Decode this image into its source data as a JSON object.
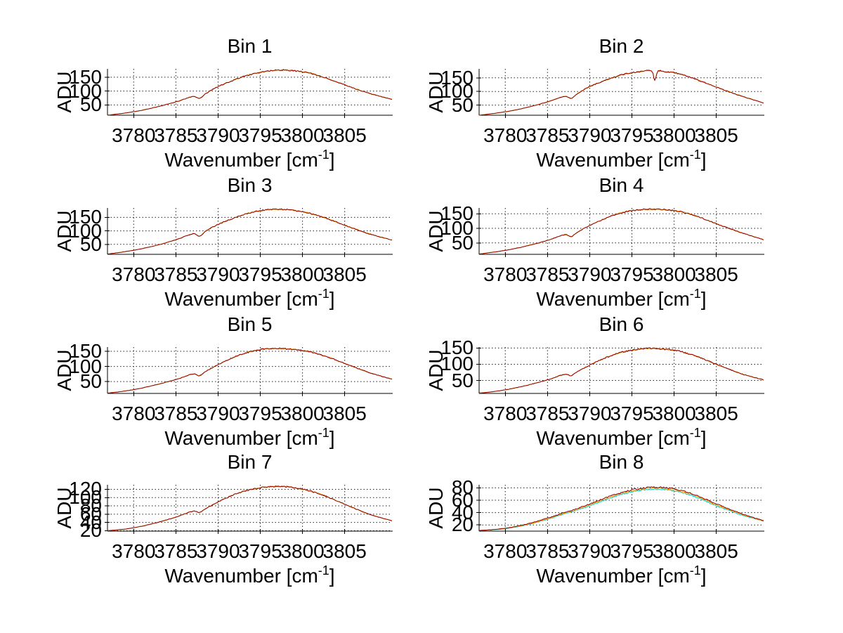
{
  "labels": {
    "ylabel": "ADU",
    "xlabel_main": "Wavenumber [cm",
    "xlabel_sup": "-1",
    "xlabel_close": "]"
  },
  "style": {
    "background": "#ffffff",
    "axis_color": "#000000",
    "grid_color": "#222222",
    "primary_trace_color": "#8B0000",
    "secondary_trace_color": "#FF9900",
    "cyan_trace_color": "#00CCCC",
    "yellow_trace_color": "#FFA500"
  },
  "chart_data": [
    {
      "type": "line",
      "title": "Bin 1",
      "xlabel": "Wavenumber [cm^-1]",
      "ylabel": "ADU",
      "x_range": [
        3776.9,
        3810.6
      ],
      "y_range": [
        13,
        180
      ],
      "grid": true,
      "x_ticks": [
        3780,
        3785,
        3790,
        3795,
        3800,
        3805
      ],
      "y_ticks": [
        50,
        100,
        150
      ],
      "noise": 2.4,
      "points": [
        [
          3776.9,
          13
        ],
        [
          3779,
          21
        ],
        [
          3781,
          31
        ],
        [
          3783,
          45
        ],
        [
          3785,
          61
        ],
        [
          3787,
          80
        ],
        [
          3787.8,
          74
        ],
        [
          3788.6,
          92
        ],
        [
          3790,
          116
        ],
        [
          3791.5,
          135
        ],
        [
          3793,
          152
        ],
        [
          3794.5,
          164
        ],
        [
          3796,
          172
        ],
        [
          3797.5,
          176
        ],
        [
          3799,
          173
        ],
        [
          3800.5,
          167
        ],
        [
          3802,
          155
        ],
        [
          3803.5,
          139
        ],
        [
          3805,
          122
        ],
        [
          3806.5,
          106
        ],
        [
          3808,
          91
        ],
        [
          3810.6,
          70
        ]
      ],
      "series": [
        {
          "name": "secondary-trace",
          "color": "#FF9900",
          "points_key": "points",
          "seed": 101
        },
        {
          "name": "primary-trace",
          "color": "#8B0000",
          "points_key": "points",
          "seed": 14
        }
      ]
    },
    {
      "type": "line",
      "title": "Bin 2",
      "xlabel": "Wavenumber [cm^-1]",
      "ylabel": "ADU",
      "x_range": [
        3776.9,
        3810.6
      ],
      "y_range": [
        13,
        183
      ],
      "grid": true,
      "x_ticks": [
        3780,
        3785,
        3790,
        3795,
        3800,
        3805
      ],
      "y_ticks": [
        50,
        100,
        150
      ],
      "noise": 2.4,
      "points": [
        [
          3776.9,
          13
        ],
        [
          3779,
          21
        ],
        [
          3781,
          31
        ],
        [
          3783,
          45
        ],
        [
          3785,
          62
        ],
        [
          3787,
          82
        ],
        [
          3787.8,
          75
        ],
        [
          3788.6,
          93
        ],
        [
          3790,
          118
        ],
        [
          3791.5,
          137
        ],
        [
          3793,
          154
        ],
        [
          3794.5,
          166
        ],
        [
          3796,
          173
        ],
        [
          3797.3,
          176
        ],
        [
          3797.7,
          141
        ],
        [
          3798.1,
          174
        ],
        [
          3799,
          172
        ],
        [
          3800.5,
          166
        ],
        [
          3802,
          152
        ],
        [
          3803.5,
          134
        ],
        [
          3805,
          116
        ],
        [
          3806.5,
          99
        ],
        [
          3808,
          83
        ],
        [
          3810.6,
          58
        ]
      ],
      "series": [
        {
          "name": "secondary-trace",
          "color": "#FF9900",
          "points_key": "points",
          "seed": 102
        },
        {
          "name": "primary-trace",
          "color": "#8B0000",
          "points_key": "points",
          "seed": 27
        }
      ]
    },
    {
      "type": "line",
      "title": "Bin 3",
      "xlabel": "Wavenumber [cm^-1]",
      "ylabel": "ADU",
      "x_range": [
        3776.9,
        3810.6
      ],
      "y_range": [
        13,
        185
      ],
      "grid": true,
      "x_ticks": [
        3780,
        3785,
        3790,
        3795,
        3800,
        3805
      ],
      "y_ticks": [
        50,
        100,
        150
      ],
      "noise": 2.4,
      "points": [
        [
          3776.9,
          14
        ],
        [
          3779,
          23
        ],
        [
          3781,
          34
        ],
        [
          3783,
          49
        ],
        [
          3785,
          67
        ],
        [
          3787,
          89
        ],
        [
          3787.8,
          80
        ],
        [
          3788.6,
          100
        ],
        [
          3790,
          124
        ],
        [
          3791.5,
          143
        ],
        [
          3793,
          160
        ],
        [
          3794.5,
          172
        ],
        [
          3796,
          179
        ],
        [
          3797.5,
          180
        ],
        [
          3799,
          176
        ],
        [
          3800.5,
          168
        ],
        [
          3802,
          155
        ],
        [
          3803.5,
          139
        ],
        [
          3805,
          121
        ],
        [
          3806.5,
          104
        ],
        [
          3808,
          88
        ],
        [
          3810.6,
          66
        ]
      ],
      "series": [
        {
          "name": "secondary-trace",
          "color": "#FF9900",
          "points_key": "points",
          "seed": 103
        },
        {
          "name": "primary-trace",
          "color": "#8B0000",
          "points_key": "points",
          "seed": 40
        }
      ]
    },
    {
      "type": "line",
      "title": "Bin 4",
      "xlabel": "Wavenumber [cm^-1]",
      "ylabel": "ADU",
      "x_range": [
        3776.9,
        3810.6
      ],
      "y_range": [
        11,
        170
      ],
      "grid": true,
      "x_ticks": [
        3780,
        3785,
        3790,
        3795,
        3800,
        3805
      ],
      "y_ticks": [
        50,
        100,
        150
      ],
      "noise": 2.2,
      "points": [
        [
          3776.9,
          12
        ],
        [
          3779,
          20
        ],
        [
          3781,
          30
        ],
        [
          3783,
          43
        ],
        [
          3785,
          59
        ],
        [
          3787,
          78
        ],
        [
          3787.8,
          72
        ],
        [
          3788.6,
          88
        ],
        [
          3790,
          110
        ],
        [
          3791.5,
          130
        ],
        [
          3793,
          147
        ],
        [
          3794.5,
          158
        ],
        [
          3796,
          164
        ],
        [
          3797.5,
          166
        ],
        [
          3799,
          164
        ],
        [
          3800.5,
          159
        ],
        [
          3802,
          148
        ],
        [
          3803.5,
          133
        ],
        [
          3805,
          116
        ],
        [
          3806.5,
          100
        ],
        [
          3808,
          85
        ],
        [
          3810.6,
          61
        ]
      ],
      "series": [
        {
          "name": "secondary-trace",
          "color": "#FF9900",
          "points_key": "points",
          "seed": 104
        },
        {
          "name": "primary-trace",
          "color": "#8B0000",
          "points_key": "points",
          "seed": 53
        }
      ]
    },
    {
      "type": "line",
      "title": "Bin 5",
      "xlabel": "Wavenumber [cm^-1]",
      "ylabel": "ADU",
      "x_range": [
        3776.9,
        3810.6
      ],
      "y_range": [
        11,
        164
      ],
      "grid": true,
      "x_ticks": [
        3780,
        3785,
        3790,
        3795,
        3800,
        3805
      ],
      "y_ticks": [
        50,
        100,
        150
      ],
      "noise": 2.2,
      "points": [
        [
          3776.9,
          12
        ],
        [
          3779,
          19
        ],
        [
          3781,
          29
        ],
        [
          3783,
          42
        ],
        [
          3785,
          57
        ],
        [
          3787,
          75
        ],
        [
          3787.8,
          70
        ],
        [
          3788.6,
          85
        ],
        [
          3790,
          106
        ],
        [
          3791.5,
          126
        ],
        [
          3793,
          142
        ],
        [
          3794.5,
          153
        ],
        [
          3796,
          159
        ],
        [
          3797.5,
          159
        ],
        [
          3799,
          156
        ],
        [
          3800.5,
          151
        ],
        [
          3802,
          140
        ],
        [
          3803.5,
          126
        ],
        [
          3805,
          110
        ],
        [
          3806.5,
          94
        ],
        [
          3808,
          79
        ],
        [
          3810.6,
          58
        ]
      ],
      "series": [
        {
          "name": "secondary-trace",
          "color": "#FF9900",
          "points_key": "points",
          "seed": 105
        },
        {
          "name": "primary-trace",
          "color": "#8B0000",
          "points_key": "points",
          "seed": 66
        }
      ]
    },
    {
      "type": "line",
      "title": "Bin 6",
      "xlabel": "Wavenumber [cm^-1]",
      "ylabel": "ADU",
      "x_range": [
        3776.9,
        3810.6
      ],
      "y_range": [
        10,
        153
      ],
      "grid": true,
      "x_ticks": [
        3780,
        3785,
        3790,
        3795,
        3800,
        3805
      ],
      "y_ticks": [
        50,
        100,
        150
      ],
      "noise": 2.2,
      "points": [
        [
          3776.9,
          11
        ],
        [
          3779,
          17
        ],
        [
          3781,
          26
        ],
        [
          3783,
          38
        ],
        [
          3785,
          52
        ],
        [
          3787,
          69
        ],
        [
          3787.8,
          65
        ],
        [
          3788.6,
          78
        ],
        [
          3790,
          97
        ],
        [
          3791.5,
          116
        ],
        [
          3793,
          131
        ],
        [
          3794.5,
          141
        ],
        [
          3796,
          147
        ],
        [
          3797.5,
          149
        ],
        [
          3799,
          146
        ],
        [
          3800.5,
          141
        ],
        [
          3802,
          130
        ],
        [
          3803.5,
          116
        ],
        [
          3805,
          100
        ],
        [
          3806.5,
          85
        ],
        [
          3808,
          70
        ],
        [
          3810.6,
          52
        ]
      ],
      "series": [
        {
          "name": "secondary-trace",
          "color": "#FF9900",
          "points_key": "points",
          "seed": 106
        },
        {
          "name": "primary-trace",
          "color": "#8B0000",
          "points_key": "points",
          "seed": 79
        }
      ]
    },
    {
      "type": "line",
      "title": "Bin 7",
      "xlabel": "Wavenumber [cm^-1]",
      "ylabel": "ADU",
      "x_range": [
        3776.9,
        3810.6
      ],
      "y_range": [
        19,
        131
      ],
      "grid": true,
      "x_ticks": [
        3780,
        3785,
        3790,
        3795,
        3800,
        3805
      ],
      "y_ticks": [
        20,
        40,
        60,
        80,
        100,
        120
      ],
      "noise": 1.6,
      "points": [
        [
          3776.9,
          20
        ],
        [
          3779,
          24
        ],
        [
          3781,
          31
        ],
        [
          3783,
          41
        ],
        [
          3785,
          53
        ],
        [
          3787,
          67
        ],
        [
          3787.8,
          64
        ],
        [
          3788.6,
          74
        ],
        [
          3790,
          89
        ],
        [
          3791.5,
          104
        ],
        [
          3793,
          115
        ],
        [
          3794.5,
          122
        ],
        [
          3796,
          126
        ],
        [
          3797.5,
          127
        ],
        [
          3799,
          124
        ],
        [
          3800.5,
          118
        ],
        [
          3802,
          109
        ],
        [
          3803.5,
          97
        ],
        [
          3805,
          84
        ],
        [
          3806.5,
          71
        ],
        [
          3808,
          59
        ],
        [
          3810.6,
          44
        ]
      ],
      "series": [
        {
          "name": "secondary-trace",
          "color": "#FF9900",
          "points_key": "points",
          "seed": 107
        },
        {
          "name": "primary-trace",
          "color": "#8B0000",
          "points_key": "points",
          "seed": 92
        }
      ]
    },
    {
      "type": "line",
      "title": "Bin 8",
      "xlabel": "Wavenumber [cm^-1]",
      "ylabel": "ADU",
      "x_range": [
        3776.9,
        3810.6
      ],
      "y_range": [
        10,
        85
      ],
      "grid": true,
      "x_ticks": [
        3780,
        3785,
        3790,
        3795,
        3800,
        3805
      ],
      "y_ticks": [
        20,
        40,
        60,
        80
      ],
      "noise": 1.3,
      "points": [
        [
          3776.9,
          11
        ],
        [
          3779,
          13
        ],
        [
          3781,
          17
        ],
        [
          3783,
          23
        ],
        [
          3785,
          31
        ],
        [
          3787,
          40
        ],
        [
          3787.8,
          43
        ],
        [
          3788.6,
          47
        ],
        [
          3790,
          54
        ],
        [
          3791.5,
          62
        ],
        [
          3793,
          69
        ],
        [
          3794.5,
          75
        ],
        [
          3796,
          79
        ],
        [
          3797.5,
          81
        ],
        [
          3799,
          80
        ],
        [
          3800.5,
          77
        ],
        [
          3802,
          71
        ],
        [
          3803.5,
          63
        ],
        [
          3805,
          54
        ],
        [
          3806.5,
          46
        ],
        [
          3808,
          38
        ],
        [
          3810.6,
          27
        ]
      ],
      "points_yellow": [
        [
          3776.9,
          11
        ],
        [
          3779,
          13
        ],
        [
          3781,
          16.5
        ],
        [
          3783,
          22
        ],
        [
          3785,
          30
        ],
        [
          3787,
          39
        ],
        [
          3787.8,
          42
        ],
        [
          3788.6,
          45.5
        ],
        [
          3790,
          52.5
        ],
        [
          3791.5,
          60.5
        ],
        [
          3793,
          67.5
        ],
        [
          3794.5,
          73.5
        ],
        [
          3796,
          77.5
        ],
        [
          3797.5,
          79.5
        ],
        [
          3799,
          78.5
        ],
        [
          3800.5,
          75.5
        ],
        [
          3802,
          69.5
        ],
        [
          3803.5,
          61.5
        ],
        [
          3805,
          52.5
        ],
        [
          3806.5,
          44.5
        ],
        [
          3808,
          37
        ],
        [
          3810.6,
          26.5
        ]
      ],
      "points_cyan": [
        [
          3776.9,
          11
        ],
        [
          3779,
          12.5
        ],
        [
          3781,
          16
        ],
        [
          3783,
          21.5
        ],
        [
          3785,
          29
        ],
        [
          3787,
          38
        ],
        [
          3787.8,
          41
        ],
        [
          3788.6,
          44.5
        ],
        [
          3790,
          51
        ],
        [
          3791.5,
          59
        ],
        [
          3793,
          66
        ],
        [
          3794.5,
          72
        ],
        [
          3796,
          76
        ],
        [
          3797.5,
          78
        ],
        [
          3799,
          77
        ],
        [
          3800.5,
          74
        ],
        [
          3802,
          68
        ],
        [
          3803.5,
          60
        ],
        [
          3805,
          51
        ],
        [
          3806.5,
          43.5
        ],
        [
          3808,
          36
        ],
        [
          3810.6,
          26
        ]
      ],
      "series": [
        {
          "name": "cyan-trace",
          "color": "#00CCCC",
          "points_key": "points_cyan",
          "seed": 181
        },
        {
          "name": "yellow-trace",
          "color": "#FFA500",
          "points_key": "points_yellow",
          "seed": 182
        },
        {
          "name": "primary-trace",
          "color": "#8B0000",
          "points_key": "points",
          "seed": 183
        }
      ]
    }
  ]
}
